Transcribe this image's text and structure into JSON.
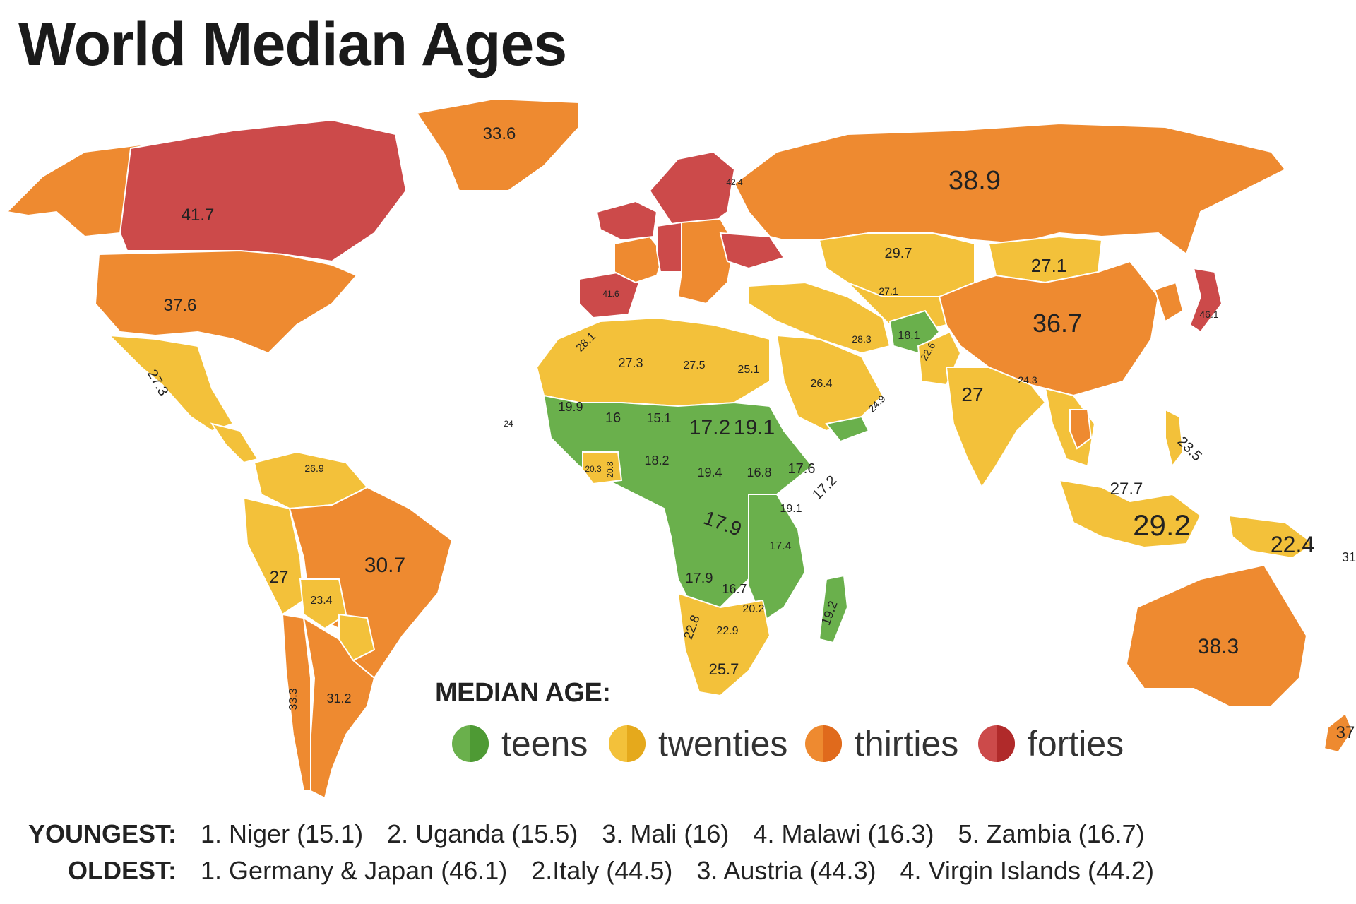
{
  "title": "World Median Ages",
  "colors": {
    "teens": "#6ab04c",
    "twenties": "#f3c13a",
    "thirties": "#ee8a30",
    "forties": "#cc4a4a",
    "teens_dark": "#4e9a34",
    "twenties_dark": "#e5a91c",
    "thirties_dark": "#e06a1c",
    "forties_dark": "#b02a2a"
  },
  "legend": {
    "title": "MEDIAN AGE:",
    "items": [
      {
        "key": "teens",
        "label": "teens"
      },
      {
        "key": "twenties",
        "label": "twenties"
      },
      {
        "key": "thirties",
        "label": "thirties"
      },
      {
        "key": "forties",
        "label": "forties"
      }
    ]
  },
  "rankings": {
    "youngest": {
      "label": "YOUNGEST:",
      "items": [
        "1. Niger (15.1)",
        "2. Uganda (15.5)",
        "3. Mali (16)",
        "4. Malawi (16.3)",
        "5. Zambia (16.7)"
      ]
    },
    "oldest": {
      "label": "OLDEST:",
      "items": [
        "1. Germany & Japan (46.1)",
        "2.Italy (44.5)",
        "3. Austria (44.3)",
        "4. Virgin Islands (44.2)"
      ]
    }
  },
  "map_labels": [
    "33.6",
    "41.7",
    "37.6",
    "38.9",
    "27.3",
    "30.7",
    "27",
    "23.4",
    "31.2",
    "33.3",
    "29.7",
    "27.1",
    "36.7",
    "27",
    "27.7",
    "29.2",
    "22.4",
    "38.3",
    "37",
    "31",
    "17.2",
    "19.1",
    "17.9",
    "17.9",
    "16.7",
    "25.7",
    "22.8",
    "19.2",
    "17.6",
    "17.2",
    "19.4",
    "16.8",
    "18.2",
    "16",
    "15.1",
    "19.9",
    "27.3",
    "27.5",
    "25.1",
    "26.4",
    "28.1",
    "23.5",
    "20.2",
    "22.9",
    "17.4",
    "19.1",
    "26.9",
    "28.3",
    "18.1",
    "22.6",
    "24.3",
    "24.9",
    "20.3",
    "20.8",
    "24",
    "27.1",
    "42.4",
    "41.6",
    "46.1"
  ],
  "countries": [
    {
      "name": "Alaska",
      "cat": "thirties"
    },
    {
      "name": "Canada",
      "cat": "forties"
    },
    {
      "name": "Greenland",
      "cat": "thirties"
    },
    {
      "name": "USA",
      "cat": "thirties"
    },
    {
      "name": "Mexico",
      "cat": "twenties"
    },
    {
      "name": "Central America",
      "cat": "twenties"
    },
    {
      "name": "Colombia-Venezuela",
      "cat": "twenties"
    },
    {
      "name": "Peru-Ecuador",
      "cat": "twenties"
    },
    {
      "name": "Brazil",
      "cat": "thirties"
    },
    {
      "name": "Bolivia",
      "cat": "twenties"
    },
    {
      "name": "Paraguay",
      "cat": "twenties"
    },
    {
      "name": "Chile",
      "cat": "thirties"
    },
    {
      "name": "Argentina",
      "cat": "thirties"
    },
    {
      "name": "Russia",
      "cat": "thirties"
    },
    {
      "name": "Scandinavia",
      "cat": "forties"
    },
    {
      "name": "Western Europe",
      "cat": "forties"
    },
    {
      "name": "Iberia",
      "cat": "forties"
    },
    {
      "name": "France",
      "cat": "thirties"
    },
    {
      "name": "Germany",
      "cat": "forties"
    },
    {
      "name": "Eastern Europe",
      "cat": "thirties"
    },
    {
      "name": "Ukraine",
      "cat": "forties"
    },
    {
      "name": "Kazakhstan",
      "cat": "twenties"
    },
    {
      "name": "Mongolia",
      "cat": "twenties"
    },
    {
      "name": "China",
      "cat": "thirties"
    },
    {
      "name": "Japan",
      "cat": "forties"
    },
    {
      "name": "Korea",
      "cat": "thirties"
    },
    {
      "name": "Turkey-Iran",
      "cat": "twenties"
    },
    {
      "name": "Central Asia",
      "cat": "twenties"
    },
    {
      "name": "Afghanistan",
      "cat": "teens"
    },
    {
      "name": "Pakistan",
      "cat": "twenties"
    },
    {
      "name": "Arabia",
      "cat": "twenties"
    },
    {
      "name": "Yemen",
      "cat": "teens"
    },
    {
      "name": "India",
      "cat": "twenties"
    },
    {
      "name": "Southeast Asia",
      "cat": "twenties"
    },
    {
      "name": "Thailand",
      "cat": "thirties"
    },
    {
      "name": "Philippines",
      "cat": "twenties"
    },
    {
      "name": "Indonesia",
      "cat": "twenties"
    },
    {
      "name": "Papua",
      "cat": "twenties"
    },
    {
      "name": "Australia",
      "cat": "thirties"
    },
    {
      "name": "New Zealand",
      "cat": "thirties"
    },
    {
      "name": "North Africa",
      "cat": "twenties"
    },
    {
      "name": "Sahel & Central Africa",
      "cat": "teens"
    },
    {
      "name": "West Africa Coast",
      "cat": "twenties"
    },
    {
      "name": "East Africa",
      "cat": "teens"
    },
    {
      "name": "Southern Africa",
      "cat": "twenties"
    },
    {
      "name": "Madagascar",
      "cat": "teens"
    }
  ]
}
